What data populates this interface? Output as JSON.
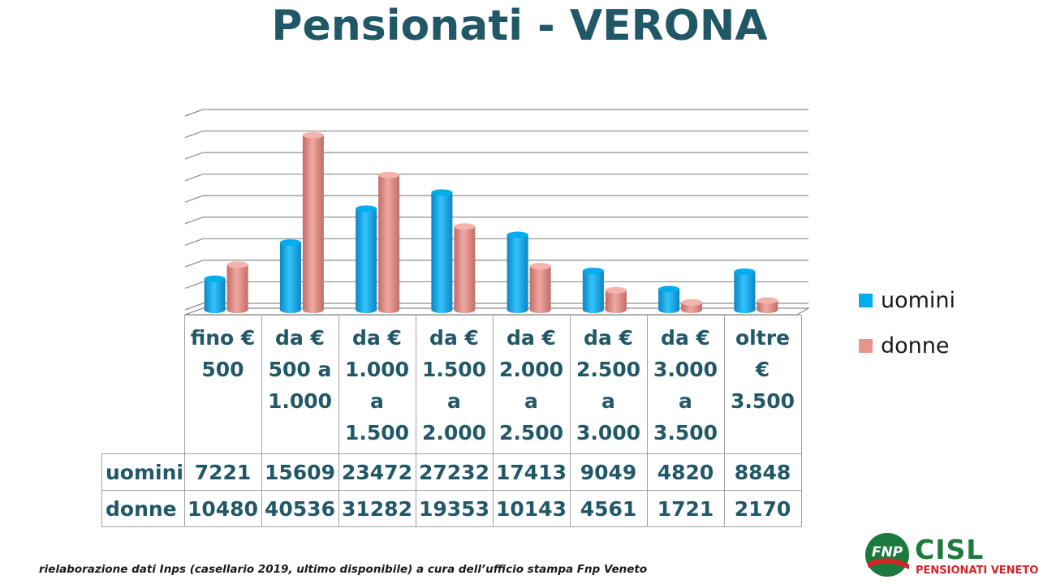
{
  "colors": {
    "title": "#215868",
    "uomini": "#00aeef",
    "donne": "#e8938c",
    "grid": "#8c8c8c",
    "logo_green": "#1b7a3c",
    "logo_red": "#d2262b"
  },
  "chart_data": {
    "type": "bar",
    "title": "Pensionati - VERONA",
    "categories": [
      "fino €\n500",
      "da €\n500 a\n1.000",
      "da €\n1.000\na\n1.500",
      "da €\n1.500\na\n2.000",
      "da €\n2.000\na\n2.500",
      "da €\n2.500\na\n3.000",
      "da €\n3.000\na\n3.500",
      "oltre\n€\n3.500"
    ],
    "series": [
      {
        "name": "uomini",
        "values": [
          7221,
          15609,
          23472,
          27232,
          17413,
          9049,
          4820,
          8848
        ]
      },
      {
        "name": "donne",
        "values": [
          10480,
          40536,
          31282,
          19353,
          10143,
          4561,
          1721,
          2170
        ]
      }
    ],
    "ylim": [
      0,
      45000
    ],
    "grid": true,
    "legend": "right",
    "style": "3d-cylinder"
  },
  "footnote": "rielaborazione dati Inps (casellario 2019, ultimo disponibile) a cura dell’ufficio stampa Fnp  Veneto",
  "logo": {
    "fnp": "FNP",
    "cisl": "CISL",
    "subtitle": "PENSIONATI VENETO"
  }
}
